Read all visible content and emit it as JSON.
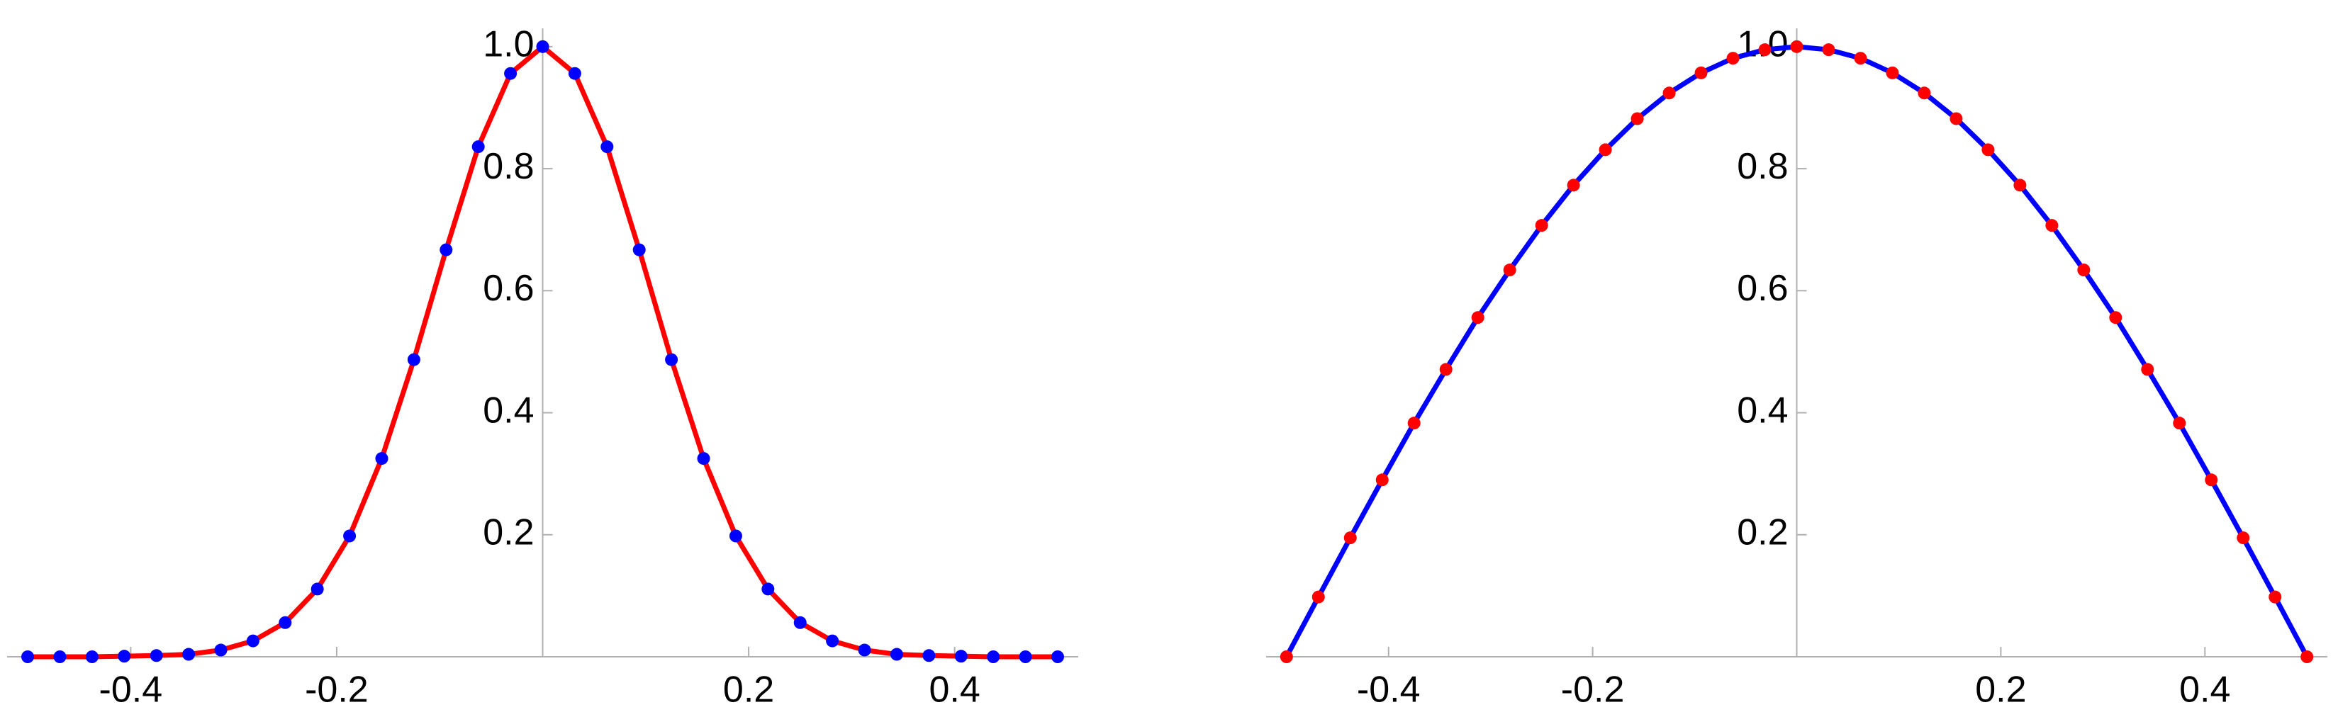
{
  "chart_data": [
    {
      "type": "line",
      "x": [
        -0.5,
        -0.46875,
        -0.4375,
        -0.40625,
        -0.375,
        -0.34375,
        -0.3125,
        -0.28125,
        -0.25,
        -0.21875,
        -0.1875,
        -0.15625,
        -0.125,
        -0.09375,
        -0.0625,
        -0.03125,
        0,
        0.03125,
        0.0625,
        0.09375,
        0.125,
        0.15625,
        0.1875,
        0.21875,
        0.25,
        0.28125,
        0.3125,
        0.34375,
        0.375,
        0.40625,
        0.4375,
        0.46875,
        0.5
      ],
      "series": [
        {
          "line_color": "#ff0000",
          "marker_color": "#0000ff",
          "values": [
            0,
            0,
            0,
            0.001,
            0.002,
            0.004,
            0.011,
            0.026,
            0.056,
            0.111,
            0.198,
            0.325,
            0.487,
            0.667,
            0.836,
            0.956,
            1,
            0.956,
            0.836,
            0.667,
            0.487,
            0.325,
            0.198,
            0.111,
            0.056,
            0.026,
            0.011,
            0.004,
            0.002,
            0.001,
            0,
            0,
            0
          ]
        }
      ],
      "xlim": [
        -0.52,
        0.52
      ],
      "ylim": [
        0,
        1.03
      ],
      "xticks": [
        -0.4,
        -0.2,
        0.2,
        0.4
      ],
      "yticks": [
        0.2,
        0.4,
        0.6,
        0.8,
        {
          "value": 1,
          "label": "1.0"
        }
      ]
    },
    {
      "type": "line",
      "x": [
        -0.5,
        -0.46875,
        -0.4375,
        -0.40625,
        -0.375,
        -0.34375,
        -0.3125,
        -0.28125,
        -0.25,
        -0.21875,
        -0.1875,
        -0.15625,
        -0.125,
        -0.09375,
        -0.0625,
        -0.03125,
        0,
        0.03125,
        0.0625,
        0.09375,
        0.125,
        0.15625,
        0.1875,
        0.21875,
        0.25,
        0.28125,
        0.3125,
        0.34375,
        0.375,
        0.40625,
        0.4375,
        0.46875,
        0.5
      ],
      "series": [
        {
          "line_color": "#0000ff",
          "marker_color": "#ff0000",
          "values": [
            0,
            0.098,
            0.195,
            0.29,
            0.383,
            0.471,
            0.556,
            0.634,
            0.707,
            0.773,
            0.831,
            0.882,
            0.924,
            0.957,
            0.981,
            0.995,
            1,
            0.995,
            0.981,
            0.957,
            0.924,
            0.882,
            0.831,
            0.773,
            0.707,
            0.634,
            0.556,
            0.471,
            0.383,
            0.29,
            0.195,
            0.098,
            0
          ]
        }
      ],
      "xlim": [
        -0.52,
        0.52
      ],
      "ylim": [
        0,
        1.03
      ],
      "xticks": [
        -0.4,
        -0.2,
        0.2,
        0.4
      ],
      "yticks": [
        0.2,
        0.4,
        0.6,
        0.8,
        {
          "value": 1,
          "label": "1.0"
        }
      ]
    }
  ]
}
